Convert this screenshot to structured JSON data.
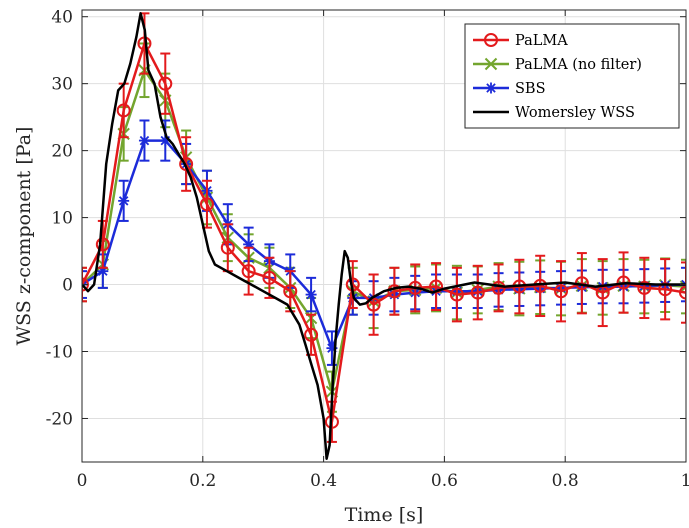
{
  "chart_data": {
    "type": "line",
    "xlabel": "Time [s]",
    "ylabel": "WSS z-component [Pa]",
    "xlim": [
      0,
      1
    ],
    "ylim": [
      -26.5,
      41
    ],
    "xticks": [
      0,
      0.2,
      0.4,
      0.6,
      0.8,
      1
    ],
    "xtick_labels": [
      "0",
      "0.2",
      "0.4",
      "0.6",
      "0.8",
      "1"
    ],
    "yticks": [
      -20,
      -10,
      0,
      10,
      20,
      30,
      40
    ],
    "ytick_labels": [
      "-20",
      "-10",
      "0",
      "10",
      "20",
      "30",
      "40"
    ],
    "grid": true,
    "legend_position": "top-right",
    "series": [
      {
        "name": "PaLMA",
        "color": "#e31a1c",
        "marker": "circle",
        "x": [
          0,
          0.0345,
          0.069,
          0.1034,
          0.1379,
          0.1724,
          0.2069,
          0.2414,
          0.2759,
          0.3103,
          0.3448,
          0.3793,
          0.4138,
          0.4483,
          0.4828,
          0.5172,
          0.5517,
          0.5862,
          0.6207,
          0.6552,
          0.6897,
          0.7241,
          0.7586,
          0.7931,
          0.8276,
          0.8621,
          0.8966,
          0.931,
          0.9655,
          1.0
        ],
        "y": [
          0,
          6,
          26,
          36,
          30,
          18,
          12,
          5.5,
          2,
          1,
          -1,
          -7.5,
          -20.5,
          0,
          -3,
          -1,
          -0.5,
          -0.3,
          -1.5,
          -1.2,
          -0.5,
          -0.3,
          -0.2,
          -1.0,
          0.2,
          -1.2,
          0.3,
          -0.5,
          -0.7,
          -1.2
        ],
        "err": [
          2.5,
          3.5,
          4,
          4.5,
          4.5,
          4,
          3.5,
          3.5,
          3.5,
          3,
          3,
          3,
          3,
          3.5,
          4.5,
          3.5,
          3.5,
          3.5,
          4,
          4,
          3.5,
          4,
          4.5,
          4.5,
          4.5,
          5,
          4.5,
          4.5,
          4.5,
          4.5
        ]
      },
      {
        "name": "PaLMA (no filter)",
        "color": "#73a52e",
        "marker": "x",
        "x": [
          0,
          0.0345,
          0.069,
          0.1034,
          0.1379,
          0.1724,
          0.2069,
          0.2414,
          0.2759,
          0.3103,
          0.3448,
          0.3793,
          0.4138,
          0.4483,
          0.4828,
          0.5172,
          0.5517,
          0.5862,
          0.6207,
          0.6552,
          0.6897,
          0.7241,
          0.7586,
          0.7931,
          0.8276,
          0.8621,
          0.8966,
          0.931,
          0.9655,
          1.0
        ],
        "y": [
          0,
          3,
          22.5,
          32,
          27.5,
          19,
          13,
          7,
          4,
          2.5,
          -0.5,
          -5,
          -16,
          -1,
          -2.5,
          -1,
          -0.8,
          -0.5,
          -1.2,
          -0.8,
          -0.3,
          -0.6,
          -0.4,
          -0.6,
          -0.2,
          -0.5,
          -0.2,
          -0.3,
          -0.1,
          -0.3
        ],
        "err": [
          2.5,
          3.5,
          4,
          4,
          4,
          4,
          4,
          3.5,
          3.5,
          3,
          3,
          3,
          3,
          3.5,
          4,
          3.5,
          3.5,
          3.5,
          4,
          3.5,
          3.5,
          4,
          4,
          4,
          4,
          4,
          4,
          4,
          4,
          4
        ]
      },
      {
        "name": "SBS",
        "color": "#1c2bd9",
        "marker": "star",
        "x": [
          0,
          0.0345,
          0.069,
          0.1034,
          0.1379,
          0.1724,
          0.2069,
          0.2414,
          0.2759,
          0.3103,
          0.3448,
          0.3793,
          0.4138,
          0.4483,
          0.4828,
          0.5172,
          0.5517,
          0.5862,
          0.6207,
          0.6552,
          0.6897,
          0.7241,
          0.7586,
          0.7931,
          0.8276,
          0.8621,
          0.8966,
          0.931,
          0.9655,
          1.0
        ],
        "y": [
          0,
          2,
          12.5,
          21.5,
          21.5,
          18,
          14,
          9,
          6,
          3.5,
          2,
          -1.5,
          -9.5,
          -2,
          -2,
          -1.5,
          -1.2,
          -1,
          -1,
          -1,
          -0.8,
          -0.7,
          -0.6,
          -0.5,
          -0.4,
          -0.3,
          -0.3,
          -0.2,
          -0.1,
          0
        ],
        "err": [
          2,
          2.5,
          3,
          3,
          3,
          3,
          3,
          3,
          2.5,
          2.5,
          2.5,
          2.5,
          2.5,
          2.5,
          2.5,
          2.5,
          2.5,
          2.5,
          2.5,
          2.5,
          2.5,
          2.5,
          2.5,
          2.5,
          2.5,
          2.5,
          2.5,
          2.5,
          2.5,
          2.5
        ]
      },
      {
        "name": "Womersley WSS",
        "color": "#000000",
        "marker": "none",
        "x": [
          0,
          0.01,
          0.02,
          0.03,
          0.04,
          0.05,
          0.06,
          0.07,
          0.08,
          0.09,
          0.097,
          0.104,
          0.11,
          0.12,
          0.13,
          0.14,
          0.15,
          0.16,
          0.17,
          0.18,
          0.19,
          0.2,
          0.21,
          0.22,
          0.23,
          0.24,
          0.26,
          0.28,
          0.3,
          0.32,
          0.34,
          0.36,
          0.37,
          0.38,
          0.39,
          0.4,
          0.405,
          0.41,
          0.415,
          0.42,
          0.425,
          0.43,
          0.435,
          0.44,
          0.445,
          0.45,
          0.46,
          0.47,
          0.48,
          0.5,
          0.52,
          0.54,
          0.56,
          0.58,
          0.6,
          0.65,
          0.7,
          0.75,
          0.8,
          0.85,
          0.9,
          0.95,
          1.0
        ],
        "y": [
          0,
          -1,
          0,
          6,
          18,
          24,
          29,
          30,
          33,
          37,
          40.5,
          38,
          32,
          30,
          25,
          22,
          21,
          19.5,
          18,
          16,
          13,
          9,
          5,
          3,
          2.5,
          2,
          1,
          0,
          -1,
          -2,
          -3,
          -6,
          -9,
          -12,
          -15,
          -20,
          -26,
          -24,
          -15,
          -8,
          -3,
          1.5,
          5,
          4,
          0.5,
          -2,
          -3,
          -2.8,
          -2,
          -1,
          -0.5,
          -0.3,
          -0.6,
          -1.2,
          -0.6,
          0.3,
          -0.3,
          0,
          0.3,
          -0.3,
          0.2,
          0,
          0
        ]
      }
    ]
  }
}
